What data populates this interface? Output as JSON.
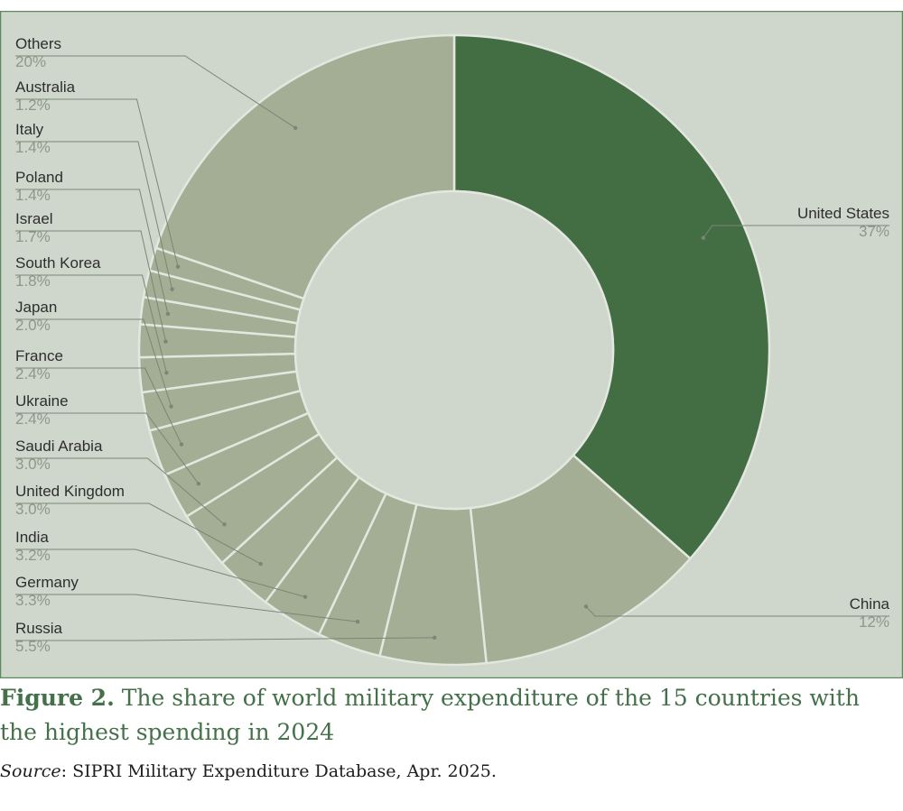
{
  "colors": {
    "background": "#cfd6cc",
    "highlight_slice": "#436e43",
    "other_slice": "#a3ae94",
    "border": "#5d8a5a",
    "caption": "#44704a"
  },
  "chart_data": {
    "type": "pie",
    "donut": true,
    "unit": "%",
    "slices": [
      {
        "name": "United States",
        "value": 37,
        "label": "37%"
      },
      {
        "name": "China",
        "value": 12,
        "label": "12%"
      },
      {
        "name": "Russia",
        "value": 5.5,
        "label": "5.5%"
      },
      {
        "name": "Germany",
        "value": 3.3,
        "label": "3.3%"
      },
      {
        "name": "India",
        "value": 3.2,
        "label": "3.2%"
      },
      {
        "name": "United Kingdom",
        "value": 3.0,
        "label": "3.0%"
      },
      {
        "name": "Saudi Arabia",
        "value": 3.0,
        "label": "3.0%"
      },
      {
        "name": "Ukraine",
        "value": 2.4,
        "label": "2.4%"
      },
      {
        "name": "France",
        "value": 2.4,
        "label": "2.4%"
      },
      {
        "name": "Japan",
        "value": 2.0,
        "label": "2.0%"
      },
      {
        "name": "South Korea",
        "value": 1.8,
        "label": "1.8%"
      },
      {
        "name": "Israel",
        "value": 1.7,
        "label": "1.7%"
      },
      {
        "name": "Poland",
        "value": 1.4,
        "label": "1.4%"
      },
      {
        "name": "Italy",
        "value": 1.4,
        "label": "1.4%"
      },
      {
        "name": "Australia",
        "value": 1.2,
        "label": "1.2%"
      },
      {
        "name": "Others",
        "value": 20,
        "label": "20%"
      }
    ]
  },
  "caption": {
    "figure_label": "Figure 2.",
    "text": " The share of world military expenditure of the 15 countries with the highest spending in 2024"
  },
  "source": {
    "label": "Source",
    "text": ": SIPRI Military Expenditure Database, Apr. 2025."
  }
}
